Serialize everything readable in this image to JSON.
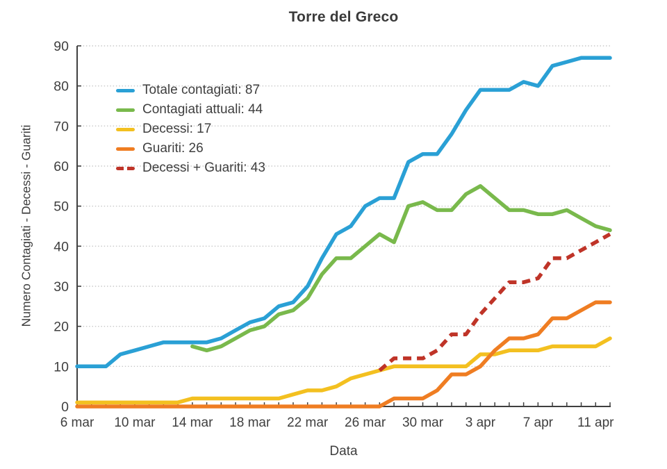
{
  "chart_data": {
    "type": "line",
    "title": "Torre del Greco",
    "xlabel": "Data",
    "ylabel": "Numero Contagiati - Decessi - Guariti",
    "ylim": [
      0,
      90
    ],
    "ytick_step": 10,
    "grid": "dotted-horizontal",
    "legend_position": "upper-left-inside",
    "x_labels": [
      "6 mar",
      "7 mar",
      "8 mar",
      "9 mar",
      "10 mar",
      "11 mar",
      "12 mar",
      "13 mar",
      "14 mar",
      "15 mar",
      "16 mar",
      "17 mar",
      "18 mar",
      "19 mar",
      "20 mar",
      "21 mar",
      "22 mar",
      "23 mar",
      "24 mar",
      "25 mar",
      "26 mar",
      "27 mar",
      "28 mar",
      "29 mar",
      "30 mar",
      "31 mar",
      "1 apr",
      "2 apr",
      "3 apr",
      "4 apr",
      "5 apr",
      "6 apr",
      "7 apr",
      "8 apr",
      "9 apr",
      "10 apr",
      "11 apr",
      "12 apr"
    ],
    "x_tick_label_indices": [
      0,
      4,
      8,
      12,
      16,
      20,
      24,
      28,
      32,
      36
    ],
    "x_tick_labels_shown": [
      "6 mar",
      "10 mar",
      "14 mar",
      "18 mar",
      "22 mar",
      "26 mar",
      "30 mar",
      "3 apr",
      "7 apr",
      "11 apr"
    ],
    "y_tick_labels": [
      "0",
      "10",
      "20",
      "30",
      "40",
      "50",
      "60",
      "70",
      "80",
      "90"
    ],
    "series": [
      {
        "name": "Totale contagiati",
        "legend": "Totale contagiati: 87",
        "color": "#2AA0D5",
        "style": "solid",
        "final_value": 87,
        "start_index": 0,
        "values": [
          10,
          10,
          10,
          13,
          14,
          15,
          16,
          16,
          16,
          16,
          17,
          19,
          21,
          22,
          25,
          26,
          30,
          37,
          43,
          45,
          50,
          52,
          52,
          61,
          63,
          63,
          68,
          74,
          79,
          79,
          79,
          81,
          80,
          85,
          86,
          87,
          87,
          87
        ]
      },
      {
        "name": "Contagiati attuali",
        "legend": "Contagiati attuali: 44",
        "color": "#79B94C",
        "style": "solid",
        "final_value": 44,
        "start_index": 8,
        "values": [
          15,
          14,
          15,
          17,
          19,
          20,
          23,
          24,
          27,
          33,
          37,
          37,
          40,
          43,
          41,
          50,
          51,
          49,
          49,
          53,
          55,
          52,
          49,
          49,
          48,
          48,
          49,
          47,
          45,
          44
        ]
      },
      {
        "name": "Decessi",
        "legend": "Decessi: 17",
        "color": "#F3C020",
        "style": "solid",
        "final_value": 17,
        "start_index": 0,
        "values": [
          1,
          1,
          1,
          1,
          1,
          1,
          1,
          1,
          2,
          2,
          2,
          2,
          2,
          2,
          2,
          3,
          4,
          4,
          5,
          7,
          8,
          9,
          10,
          10,
          10,
          10,
          10,
          10,
          13,
          13,
          14,
          14,
          14,
          15,
          15,
          15,
          15,
          17
        ]
      },
      {
        "name": "Guariti",
        "legend": "Guariti: 26",
        "color": "#EF7D22",
        "style": "solid",
        "final_value": 26,
        "start_index": 0,
        "values": [
          0,
          0,
          0,
          0,
          0,
          0,
          0,
          0,
          0,
          0,
          0,
          0,
          0,
          0,
          0,
          0,
          0,
          0,
          0,
          0,
          0,
          0,
          2,
          2,
          2,
          4,
          8,
          8,
          10,
          14,
          17,
          17,
          18,
          22,
          22,
          24,
          26,
          26
        ]
      },
      {
        "name": "Decessi + Guariti",
        "legend": "Decessi + Guariti: 43",
        "color": "#BF3428",
        "style": "dashed",
        "final_value": 43,
        "start_index": 21,
        "values": [
          9,
          12,
          12,
          12,
          14,
          18,
          18,
          23,
          27,
          31,
          31,
          32,
          37,
          37,
          39,
          41,
          43
        ]
      }
    ],
    "colors": {
      "axis": "#3f3f3f",
      "grid": "#c9c9c9",
      "text": "#3f3f3f"
    }
  }
}
